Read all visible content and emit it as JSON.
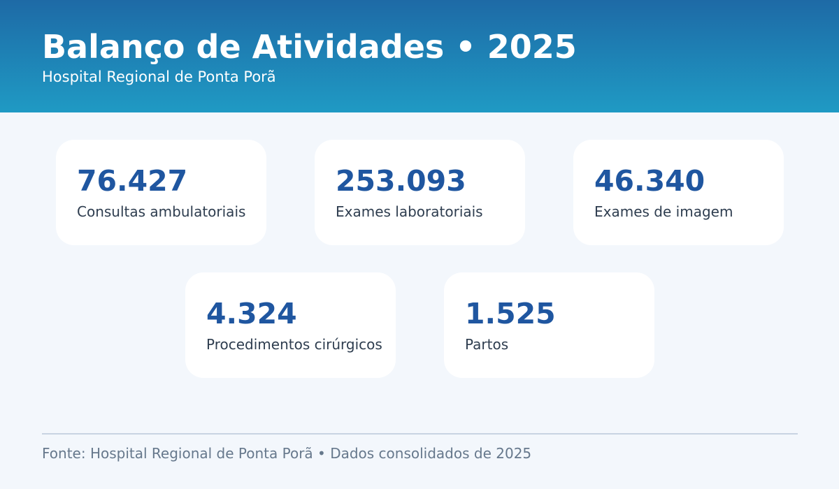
{
  "header": {
    "title": "Balanço de Atividades • 2025",
    "subtitle": "Hospital Regional de Ponta Porã"
  },
  "stats": [
    {
      "value": "76.427",
      "label": "Consultas ambulatoriais"
    },
    {
      "value": "253.093",
      "label": "Exames laboratoriais"
    },
    {
      "value": "46.340",
      "label": "Exames de imagem"
    },
    {
      "value": "4.324",
      "label": "Procedimentos cirúrgicos"
    },
    {
      "value": "1.525",
      "label": "Partos"
    }
  ],
  "footer": {
    "source": "Fonte: Hospital Regional de Ponta Porã • Dados consolidados de 2025"
  },
  "colors": {
    "header_top": "#1e6aa6",
    "header_bottom": "#1f9ac4",
    "value_text": "#1f56a0",
    "background": "#f3f7fc"
  }
}
